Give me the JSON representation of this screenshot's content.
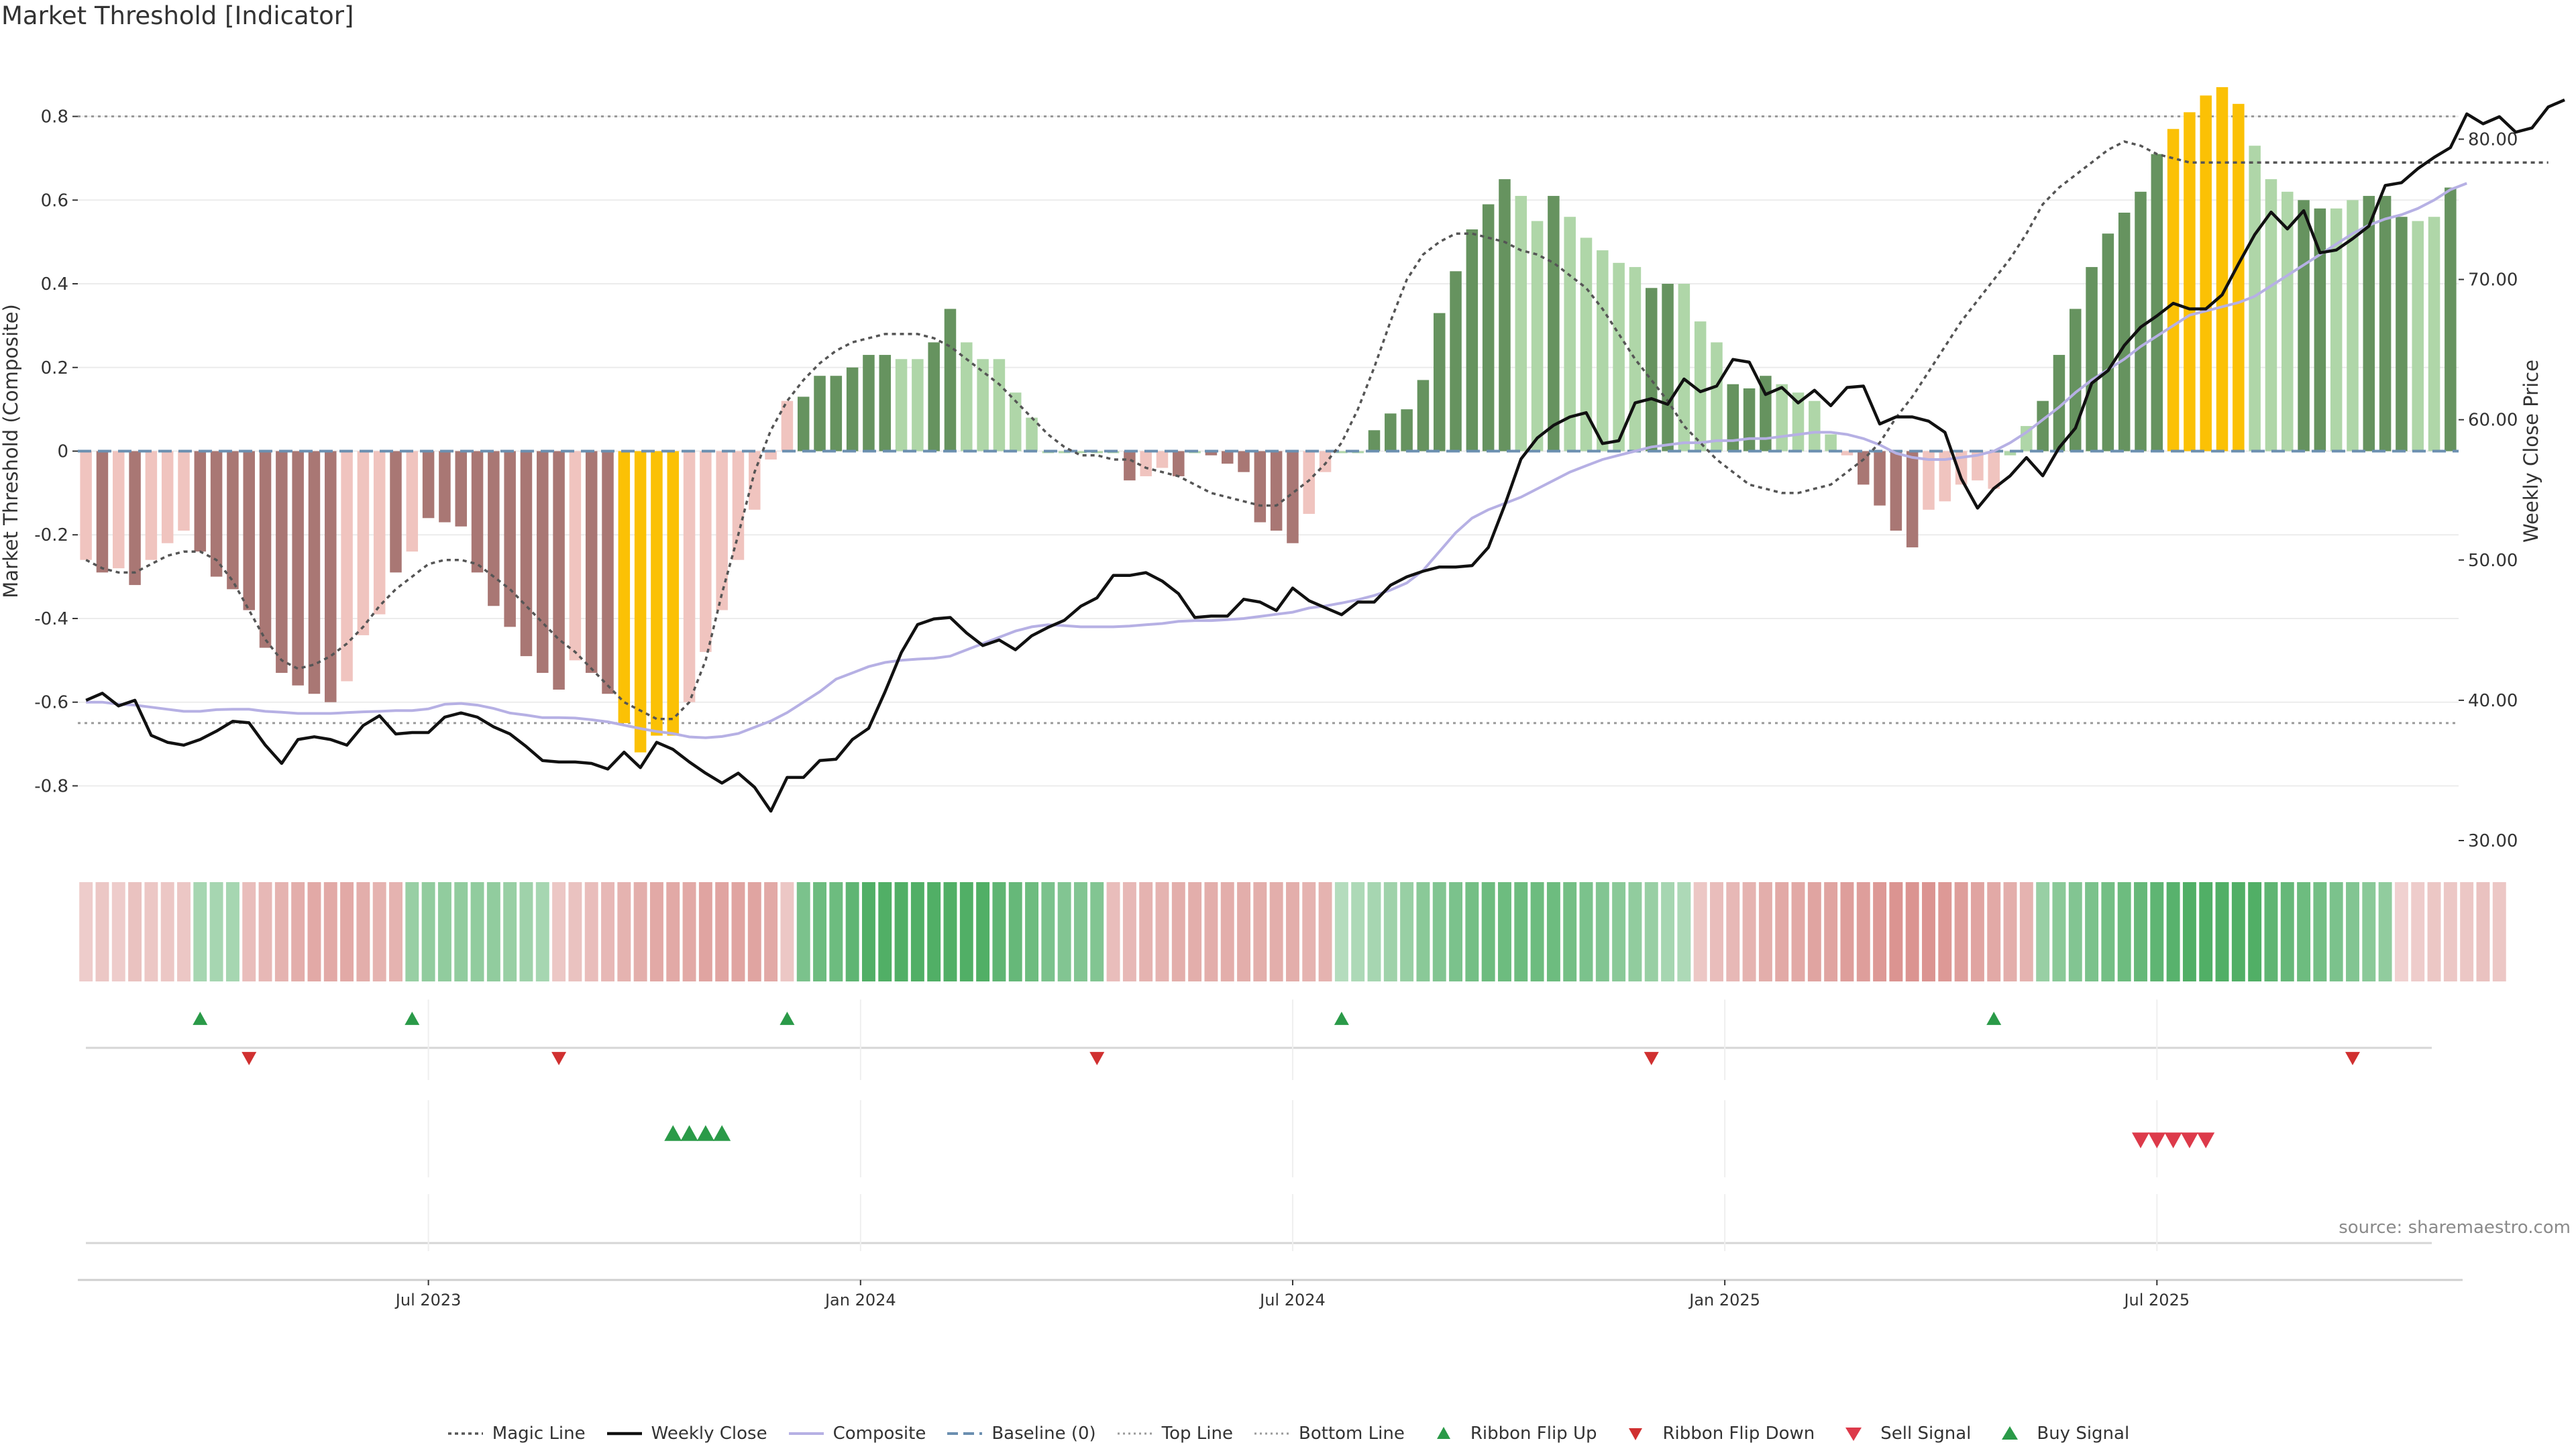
{
  "page": {
    "title": "Market Threshold [Indicator]",
    "source": "source: sharemaestro.com"
  },
  "legend": [
    {
      "key": "magic",
      "label": "Magic Line"
    },
    {
      "key": "close",
      "label": "Weekly Close"
    },
    {
      "key": "composite",
      "label": "Composite"
    },
    {
      "key": "baseline",
      "label": "Baseline (0)"
    },
    {
      "key": "top",
      "label": "Top Line"
    },
    {
      "key": "bottom",
      "label": "Bottom Line"
    },
    {
      "key": "flip_up",
      "label": "Ribbon Flip Up"
    },
    {
      "key": "flip_down",
      "label": "Ribbon Flip Down"
    },
    {
      "key": "sell",
      "label": "Sell Signal"
    },
    {
      "key": "buy",
      "label": "Buy Signal"
    }
  ],
  "colors": {
    "bar_strong_neg": "#a97774",
    "bar_weak_neg": "#f0c4bf",
    "bar_strong_pos": "#66935f",
    "bar_weak_pos": "#afd6a8",
    "bar_extreme": "#fbc105",
    "weekly_close": "#111111",
    "composite": "#b6b0e4",
    "magic": "#555555",
    "baseline": "#6b8fb0",
    "threshold_line": "#9a9a9a",
    "ribbon_green": "#43a85a",
    "ribbon_red": "#d4807c",
    "flip_up": "#2a9a48",
    "flip_down": "#d03030"
  },
  "chart_data": {
    "type": "bar",
    "y_left_label": "Market Threshold (Composite)",
    "y_right_label": "Weekly Close Price",
    "y_left_ticks": [
      "0.8",
      "0.6",
      "0.4",
      "0.2",
      "0",
      "-0.2",
      "-0.4",
      "-0.6",
      "-0.8"
    ],
    "y_left_tick_values": [
      0.8,
      0.6,
      0.4,
      0.2,
      0,
      -0.2,
      -0.4,
      -0.6,
      -0.8
    ],
    "y_right_ticks": [
      "80.00",
      "70.00",
      "60.00",
      "50.00",
      "40.00",
      "30.00"
    ],
    "y_right_tick_values": [
      80,
      70,
      60,
      50,
      40,
      30
    ],
    "ylim_left": [
      -0.95,
      0.95
    ],
    "ylim_right": [
      30,
      86
    ],
    "x_tick_labels": [
      "Jul 2023",
      "Jan 2024",
      "Jul 2024",
      "Jan 2025",
      "Jul 2025"
    ],
    "x_tick_weeks": [
      21.5,
      48,
      74.5,
      101,
      127.5
    ],
    "top_line": 0.8,
    "bottom_line": -0.65,
    "baseline": 0,
    "composite_bars": [
      -0.26,
      -0.29,
      -0.28,
      -0.32,
      -0.26,
      -0.22,
      -0.19,
      -0.24,
      -0.3,
      -0.33,
      -0.38,
      -0.47,
      -0.53,
      -0.56,
      -0.58,
      -0.6,
      -0.55,
      -0.44,
      -0.39,
      -0.29,
      -0.24,
      -0.16,
      -0.17,
      -0.18,
      -0.29,
      -0.37,
      -0.42,
      -0.49,
      -0.53,
      -0.57,
      -0.5,
      -0.53,
      -0.58,
      -0.65,
      -0.72,
      -0.68,
      -0.68,
      -0.6,
      -0.48,
      -0.38,
      -0.26,
      -0.14,
      -0.02,
      0.12,
      0.13,
      0.18,
      0.18,
      0.2,
      0.23,
      0.23,
      0.22,
      0.22,
      0.26,
      0.34,
      0.26,
      0.22,
      0.22,
      0.14,
      0.08,
      0.0,
      0.0,
      0.0,
      0.0,
      0.0,
      -0.07,
      -0.06,
      -0.04,
      -0.06,
      0.0,
      -0.01,
      -0.03,
      -0.05,
      -0.17,
      -0.19,
      -0.22,
      -0.15,
      -0.05,
      0.0,
      0.0,
      0.05,
      0.09,
      0.1,
      0.17,
      0.33,
      0.43,
      0.53,
      0.59,
      0.65,
      0.61,
      0.55,
      0.61,
      0.56,
      0.51,
      0.48,
      0.45,
      0.44,
      0.39,
      0.4,
      0.4,
      0.31,
      0.26,
      0.16,
      0.15,
      0.18,
      0.16,
      0.14,
      0.12,
      0.04,
      -0.01,
      -0.08,
      -0.13,
      -0.19,
      -0.23,
      -0.14,
      -0.12,
      -0.08,
      -0.07,
      -0.09,
      -0.01,
      0.06,
      0.12,
      0.23,
      0.34,
      0.44,
      0.52,
      0.57,
      0.62,
      0.71,
      0.77,
      0.81,
      0.85,
      0.87,
      0.83,
      0.73,
      0.65,
      0.62,
      0.6,
      0.58,
      0.58,
      0.6,
      0.61,
      0.61,
      0.56,
      0.55,
      0.56,
      0.63
    ],
    "bar_classes": [
      "w",
      "s",
      "w",
      "s",
      "w",
      "w",
      "w",
      "s",
      "s",
      "s",
      "s",
      "s",
      "s",
      "s",
      "s",
      "s",
      "w",
      "w",
      "w",
      "s",
      "w",
      "s",
      "s",
      "s",
      "s",
      "s",
      "s",
      "s",
      "s",
      "s",
      "w",
      "s",
      "s",
      "e",
      "e",
      "e",
      "e",
      "w",
      "w",
      "w",
      "w",
      "w",
      "w",
      "w",
      "sp",
      "sp",
      "sp",
      "sp",
      "sp",
      "sp",
      "wp",
      "wp",
      "sp",
      "sp",
      "wp",
      "wp",
      "wp",
      "wp",
      "wp",
      "z",
      "z",
      "z",
      "z",
      "z",
      "s",
      "w",
      "w",
      "s",
      "z",
      "s",
      "s",
      "s",
      "s",
      "s",
      "s",
      "w",
      "w",
      "z",
      "z",
      "sp",
      "sp",
      "sp",
      "sp",
      "sp",
      "sp",
      "sp",
      "sp",
      "sp",
      "wp",
      "wp",
      "sp",
      "wp",
      "wp",
      "wp",
      "wp",
      "wp",
      "sp",
      "sp",
      "wp",
      "wp",
      "wp",
      "sp",
      "sp",
      "sp",
      "wp",
      "wp",
      "wp",
      "wp",
      "w",
      "s",
      "s",
      "s",
      "s",
      "w",
      "w",
      "w",
      "w",
      "w",
      "wp",
      "wp",
      "sp",
      "sp",
      "sp",
      "sp",
      "sp",
      "sp",
      "sp",
      "sp",
      "e",
      "e",
      "e",
      "e",
      "e",
      "wp",
      "wp",
      "wp",
      "sp",
      "sp",
      "wp",
      "wp",
      "sp",
      "sp",
      "sp",
      "wp",
      "wp",
      "sp",
      "sp"
    ],
    "weekly_close": [
      40.0,
      40.5,
      39.6,
      40.0,
      37.5,
      37.0,
      36.8,
      37.2,
      37.8,
      38.5,
      38.4,
      36.8,
      35.5,
      37.2,
      37.4,
      37.2,
      36.8,
      38.2,
      38.9,
      37.6,
      37.7,
      37.7,
      38.8,
      39.1,
      38.8,
      38.1,
      37.6,
      36.7,
      35.7,
      35.6,
      35.6,
      35.5,
      35.1,
      36.3,
      35.2,
      37.0,
      36.5,
      35.6,
      34.8,
      34.1,
      34.8,
      33.8,
      32.1,
      34.5,
      34.5,
      35.7,
      35.8,
      37.2,
      38.0,
      40.6,
      43.4,
      45.4,
      45.8,
      45.9,
      44.8,
      43.9,
      44.3,
      43.6,
      44.6,
      45.2,
      45.7,
      46.7,
      47.3,
      48.9,
      48.9,
      49.1,
      48.5,
      47.6,
      45.9,
      46.0,
      46.0,
      47.2,
      47.0,
      46.4,
      48.0,
      47.1,
      46.6,
      46.1,
      47.0,
      47.0,
      48.2,
      48.8,
      49.2,
      49.5,
      49.5,
      49.6,
      50.9,
      53.9,
      57.2,
      58.7,
      59.6,
      60.2,
      60.5,
      58.3,
      58.5,
      61.2,
      61.5,
      61.1,
      62.9,
      62.0,
      62.4,
      64.3,
      64.1,
      61.8,
      62.3,
      61.2,
      62.1,
      61.0,
      62.3,
      62.4,
      59.7,
      60.2,
      60.2,
      59.9,
      59.1,
      55.8,
      53.7,
      55.1,
      56.0,
      57.3,
      56.0,
      58.0,
      59.4,
      62.6,
      63.5,
      65.3,
      66.6,
      67.4,
      68.3,
      67.9,
      67.9,
      68.9,
      71.1,
      73.2,
      74.8,
      73.6,
      74.9,
      71.9,
      72.1,
      72.9,
      73.8,
      76.7,
      76.9,
      77.9,
      78.7,
      79.4,
      81.8,
      81.1,
      81.6,
      80.5,
      80.8,
      82.3,
      82.8
    ],
    "composite_line": [
      -0.6,
      -0.6,
      -0.605,
      -0.607,
      -0.612,
      -0.617,
      -0.622,
      -0.622,
      -0.618,
      -0.617,
      -0.617,
      -0.622,
      -0.624,
      -0.627,
      -0.627,
      -0.627,
      -0.625,
      -0.623,
      -0.622,
      -0.62,
      -0.62,
      -0.616,
      -0.605,
      -0.603,
      -0.607,
      -0.615,
      -0.626,
      -0.631,
      -0.637,
      -0.637,
      -0.638,
      -0.642,
      -0.647,
      -0.655,
      -0.663,
      -0.67,
      -0.675,
      -0.683,
      -0.685,
      -0.682,
      -0.675,
      -0.66,
      -0.645,
      -0.625,
      -0.6,
      -0.575,
      -0.545,
      -0.53,
      -0.515,
      -0.505,
      -0.5,
      -0.497,
      -0.495,
      -0.49,
      -0.475,
      -0.46,
      -0.445,
      -0.43,
      -0.42,
      -0.415,
      -0.417,
      -0.42,
      -0.42,
      -0.42,
      -0.418,
      -0.415,
      -0.412,
      -0.407,
      -0.405,
      -0.405,
      -0.403,
      -0.4,
      -0.395,
      -0.39,
      -0.385,
      -0.375,
      -0.37,
      -0.363,
      -0.355,
      -0.345,
      -0.332,
      -0.315,
      -0.285,
      -0.24,
      -0.195,
      -0.16,
      -0.14,
      -0.125,
      -0.11,
      -0.09,
      -0.07,
      -0.05,
      -0.035,
      -0.02,
      -0.01,
      0.0,
      0.01,
      0.015,
      0.02,
      0.02,
      0.025,
      0.025,
      0.03,
      0.03,
      0.035,
      0.04,
      0.045,
      0.045,
      0.04,
      0.03,
      0.015,
      -0.005,
      -0.015,
      -0.02,
      -0.02,
      -0.015,
      -0.01,
      0.0,
      0.02,
      0.045,
      0.075,
      0.105,
      0.14,
      0.17,
      0.195,
      0.22,
      0.25,
      0.275,
      0.3,
      0.325,
      0.335,
      0.345,
      0.355,
      0.37,
      0.395,
      0.42,
      0.445,
      0.47,
      0.495,
      0.52,
      0.54,
      0.555,
      0.565,
      0.58,
      0.6,
      0.625,
      0.64
    ],
    "magic_line": [
      -0.26,
      -0.28,
      -0.29,
      -0.29,
      -0.27,
      -0.25,
      -0.24,
      -0.24,
      -0.26,
      -0.31,
      -0.38,
      -0.45,
      -0.5,
      -0.52,
      -0.51,
      -0.49,
      -0.46,
      -0.42,
      -0.37,
      -0.33,
      -0.3,
      -0.27,
      -0.26,
      -0.26,
      -0.27,
      -0.3,
      -0.33,
      -0.37,
      -0.41,
      -0.45,
      -0.48,
      -0.52,
      -0.56,
      -0.6,
      -0.62,
      -0.64,
      -0.64,
      -0.6,
      -0.5,
      -0.34,
      -0.2,
      -0.05,
      0.05,
      0.12,
      0.17,
      0.21,
      0.24,
      0.26,
      0.27,
      0.28,
      0.28,
      0.28,
      0.27,
      0.25,
      0.22,
      0.19,
      0.16,
      0.12,
      0.08,
      0.04,
      0.01,
      -0.01,
      -0.01,
      -0.02,
      -0.02,
      -0.04,
      -0.05,
      -0.06,
      -0.08,
      -0.1,
      -0.11,
      -0.12,
      -0.13,
      -0.13,
      -0.1,
      -0.07,
      -0.03,
      0.02,
      0.1,
      0.2,
      0.31,
      0.41,
      0.47,
      0.5,
      0.52,
      0.52,
      0.51,
      0.5,
      0.48,
      0.47,
      0.45,
      0.42,
      0.39,
      0.34,
      0.28,
      0.22,
      0.17,
      0.12,
      0.06,
      0.02,
      -0.02,
      -0.05,
      -0.08,
      -0.09,
      -0.1,
      -0.1,
      -0.09,
      -0.08,
      -0.05,
      -0.02,
      0.02,
      0.08,
      0.13,
      0.19,
      0.25,
      0.31,
      0.36,
      0.41,
      0.46,
      0.52,
      0.59,
      0.63,
      0.66,
      0.69,
      0.72,
      0.74,
      0.73,
      0.71,
      0.7,
      0.69,
      0.69,
      0.69,
      0.69,
      0.69,
      0.69,
      0.69,
      0.69,
      0.69,
      0.69,
      0.69,
      0.69,
      0.69,
      0.69,
      0.69,
      0.69,
      0.69,
      0.69,
      0.69,
      0.69,
      0.69,
      0.69,
      0.69
    ],
    "ribbon_values": [
      -0.25,
      -0.3,
      -0.25,
      -0.35,
      -0.3,
      -0.3,
      -0.3,
      0.3,
      0.3,
      0.3,
      -0.4,
      -0.45,
      -0.5,
      -0.55,
      -0.6,
      -0.6,
      -0.6,
      -0.55,
      -0.5,
      -0.5,
      0.4,
      0.45,
      0.45,
      0.45,
      0.45,
      0.45,
      0.4,
      0.35,
      0.3,
      -0.3,
      -0.35,
      -0.4,
      -0.45,
      -0.5,
      -0.55,
      -0.6,
      -0.6,
      -0.6,
      -0.65,
      -0.65,
      -0.65,
      -0.65,
      -0.6,
      -0.3,
      0.6,
      0.7,
      0.7,
      0.8,
      0.9,
      0.9,
      0.9,
      0.9,
      0.9,
      0.9,
      0.9,
      0.9,
      0.8,
      0.75,
      0.7,
      0.6,
      0.55,
      0.55,
      0.55,
      -0.4,
      -0.45,
      -0.5,
      -0.5,
      -0.55,
      -0.55,
      -0.55,
      -0.55,
      -0.55,
      -0.55,
      -0.55,
      -0.55,
      -0.5,
      -0.5,
      0.2,
      0.25,
      0.3,
      0.35,
      0.4,
      0.5,
      0.55,
      0.6,
      0.65,
      0.7,
      0.7,
      0.7,
      0.7,
      0.7,
      0.65,
      0.6,
      0.55,
      0.5,
      0.45,
      0.4,
      0.3,
      0.25,
      -0.3,
      -0.4,
      -0.45,
      -0.5,
      -0.55,
      -0.6,
      -0.6,
      -0.65,
      -0.65,
      -0.7,
      -0.7,
      -0.75,
      -0.8,
      -0.8,
      -0.8,
      -0.75,
      -0.7,
      -0.65,
      -0.6,
      -0.55,
      -0.5,
      0.4,
      0.5,
      0.55,
      0.6,
      0.65,
      0.7,
      0.75,
      0.8,
      0.85,
      0.9,
      0.9,
      0.9,
      0.9,
      0.9,
      0.8,
      0.75,
      0.7,
      0.65,
      0.6,
      0.55,
      0.5,
      0.45,
      -0.2,
      -0.25,
      -0.3,
      -0.3,
      -0.3,
      -0.35,
      -0.3
    ],
    "ribbon_flip_up_weeks": [
      7,
      20,
      43,
      77,
      117
    ],
    "ribbon_flip_down_weeks": [
      10,
      29,
      62,
      96,
      139
    ],
    "buy_signal_weeks": [
      36,
      37,
      38,
      39
    ],
    "sell_signal_weeks": [
      126,
      127,
      128,
      129,
      130
    ]
  }
}
